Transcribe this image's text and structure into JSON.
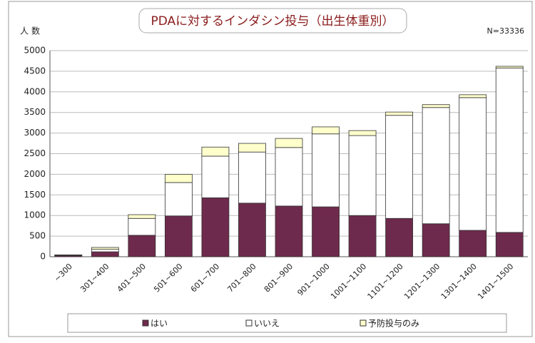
{
  "chart_data": {
    "type": "stacked_bar",
    "title": "PDAに対するインダシン投与（出生体重別）",
    "y_axis_label": "人数",
    "annotation": "N=33336",
    "categories": [
      "~300",
      "301~400",
      "401~500",
      "501~600",
      "601~700",
      "701~800",
      "801~900",
      "901~1000",
      "1001~1100",
      "1101~1200",
      "1201~1300",
      "1301~1400",
      "1401~1500"
    ],
    "series": [
      {
        "name": "はい",
        "color": "#6e2a4c",
        "values": [
          30,
          120,
          520,
          990,
          1430,
          1300,
          1230,
          1210,
          1000,
          930,
          800,
          640,
          590
        ]
      },
      {
        "name": "いいえ",
        "color": "#ffffff",
        "values": [
          10,
          60,
          410,
          810,
          1010,
          1240,
          1420,
          1770,
          1940,
          2500,
          2820,
          3220,
          3990
        ]
      },
      {
        "name": "予防投与のみ",
        "color": "#ffffcc",
        "values": [
          5,
          45,
          90,
          200,
          220,
          210,
          220,
          170,
          120,
          80,
          70,
          70,
          40
        ]
      }
    ],
    "ylim": [
      0,
      5000
    ],
    "yticks": [
      0,
      500,
      1000,
      1500,
      2000,
      2500,
      3000,
      3500,
      4000,
      4500,
      5000
    ],
    "grid": true
  }
}
